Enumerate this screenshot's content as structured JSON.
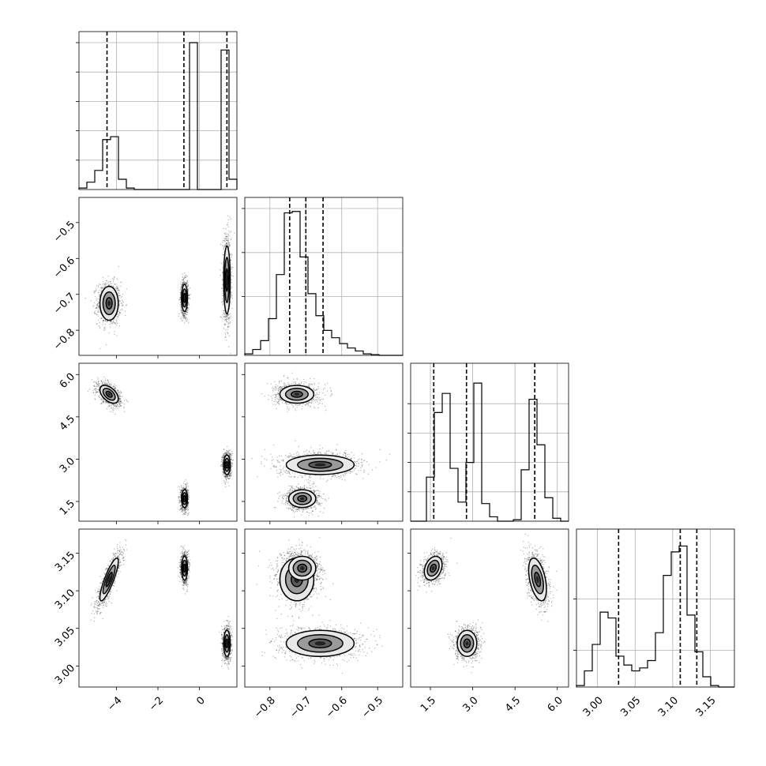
{
  "chart_data": {
    "type": "corner",
    "parameters": [
      {
        "range": [
          -5.8,
          1.8
        ],
        "ticks": [
          -4,
          -2,
          0
        ],
        "tick_labels": [
          "−4",
          "−2",
          "0"
        ]
      },
      {
        "range": [
          -0.87,
          -0.43
        ],
        "ticks": [
          -0.8,
          -0.7,
          -0.6,
          -0.5
        ],
        "tick_labels": [
          "−0.8",
          "−0.7",
          "−0.6",
          "−0.5"
        ]
      },
      {
        "range": [
          0.8,
          6.4
        ],
        "ticks": [
          1.5,
          3.0,
          4.5,
          6.0
        ],
        "tick_labels": [
          "1.5",
          "3.0",
          "4.5",
          "6.0"
        ]
      },
      {
        "range": [
          2.972,
          3.182
        ],
        "ticks": [
          3.0,
          3.05,
          3.1,
          3.15
        ],
        "tick_labels": [
          "3.00",
          "3.05",
          "3.10",
          "3.15"
        ]
      }
    ],
    "quantiles": [
      [
        -4.45,
        -0.75,
        1.32
      ],
      [
        -0.745,
        -0.7,
        -0.652
      ],
      [
        1.62,
        2.78,
        5.2
      ],
      [
        3.028,
        3.11,
        3.132
      ]
    ],
    "modes": [
      {
        "x": -4.35,
        "y": -0.725,
        "z": 5.3,
        "w": 3.115,
        "sx": 0.28,
        "sy": 0.03,
        "sz": 0.2,
        "sw": 0.018,
        "rho_xz": -0.5,
        "rho_xw": 0.85,
        "rho_zw": -0.45,
        "weight": 1.0
      },
      {
        "x": -0.72,
        "y": -0.71,
        "z": 1.6,
        "w": 3.13,
        "sx": 0.09,
        "sy": 0.024,
        "sz": 0.2,
        "sw": 0.01,
        "rho_xz": 0.0,
        "rho_xw": 0.0,
        "rho_zw": 0.3,
        "weight": 1.0
      },
      {
        "x": 1.32,
        "y": -0.66,
        "z": 2.8,
        "w": 3.03,
        "sx": 0.1,
        "sy": 0.06,
        "sz": 0.22,
        "sw": 0.011,
        "rho_xz": 0.0,
        "rho_xw": 0.0,
        "rho_zw": 0.0,
        "weight": 1.0
      }
    ],
    "histograms": [
      {
        "edges_from": -5.8,
        "bin_width": 0.38,
        "counts": [
          0.01,
          0.05,
          0.13,
          0.34,
          0.36,
          0.07,
          0.01,
          0,
          0,
          0,
          0,
          0,
          0,
          0,
          1.0,
          0,
          0,
          0,
          0.95,
          0.07
        ]
      },
      {
        "edges_from": -0.87,
        "bin_width": 0.022,
        "counts": [
          0.01,
          0.04,
          0.1,
          0.25,
          0.55,
          0.97,
          0.98,
          0.67,
          0.42,
          0.27,
          0.17,
          0.12,
          0.08,
          0.05,
          0.03,
          0.01,
          0.005,
          0,
          0,
          0
        ]
      },
      {
        "edges_from": 0.8,
        "bin_width": 0.28,
        "counts": [
          0,
          0,
          0.3,
          0.74,
          0.87,
          0.36,
          0.13,
          0.4,
          0.94,
          0.12,
          0.03,
          0,
          0,
          0.01,
          0.35,
          0.83,
          0.52,
          0.16,
          0.02,
          0
        ]
      },
      {
        "edges_from": 2.972,
        "bin_width": 0.0105,
        "counts": [
          0.01,
          0.11,
          0.29,
          0.51,
          0.47,
          0.21,
          0.15,
          0.11,
          0.13,
          0.18,
          0.37,
          0.76,
          0.92,
          0.96,
          0.49,
          0.24,
          0.07,
          0.01,
          0,
          0
        ]
      }
    ],
    "histogram_ticks": [
      [
        0.2,
        0.4,
        0.6,
        0.8,
        1.0
      ],
      [
        0.4,
        0.7,
        1.0
      ],
      [
        0.2,
        0.4,
        0.6,
        0.8
      ],
      [
        0.25,
        0.6
      ]
    ],
    "grid": true,
    "contour_levels": 3,
    "points_per_mode": 1000
  }
}
